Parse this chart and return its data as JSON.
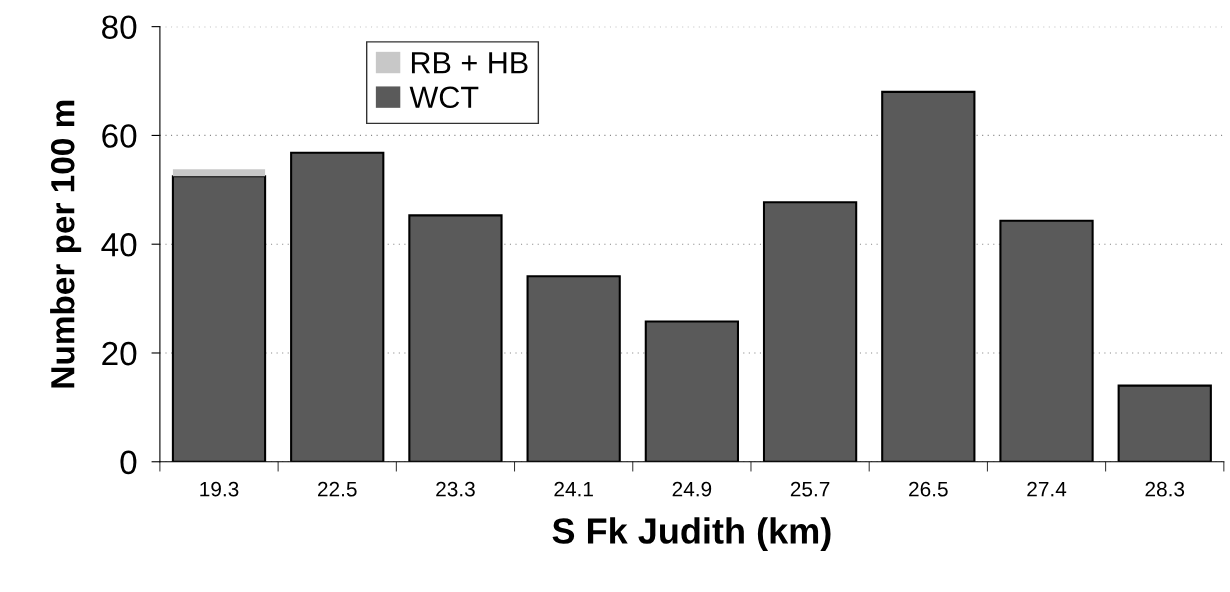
{
  "chart_data": {
    "type": "bar",
    "stacked": true,
    "xlabel": "S Fk Judith (km)",
    "ylabel": "Number per 100 m",
    "categories": [
      "19.3",
      "22.5",
      "23.3",
      "24.1",
      "24.9",
      "25.7",
      "26.5",
      "27.4",
      "28.3"
    ],
    "series": [
      {
        "name": "WCT",
        "color": "#5a5a5a",
        "values": [
          52.5,
          56.8,
          45.3,
          34.1,
          25.8,
          47.7,
          68.0,
          44.3,
          14.0
        ]
      },
      {
        "name": "RB + HB",
        "color": "#c8c8c8",
        "values": [
          1.3,
          0,
          0,
          0,
          0,
          0,
          0,
          0,
          0
        ]
      }
    ],
    "ylim": [
      0,
      80
    ],
    "yticks": [
      0,
      20,
      40,
      60,
      80
    ],
    "grid": "y",
    "legend": "top"
  }
}
